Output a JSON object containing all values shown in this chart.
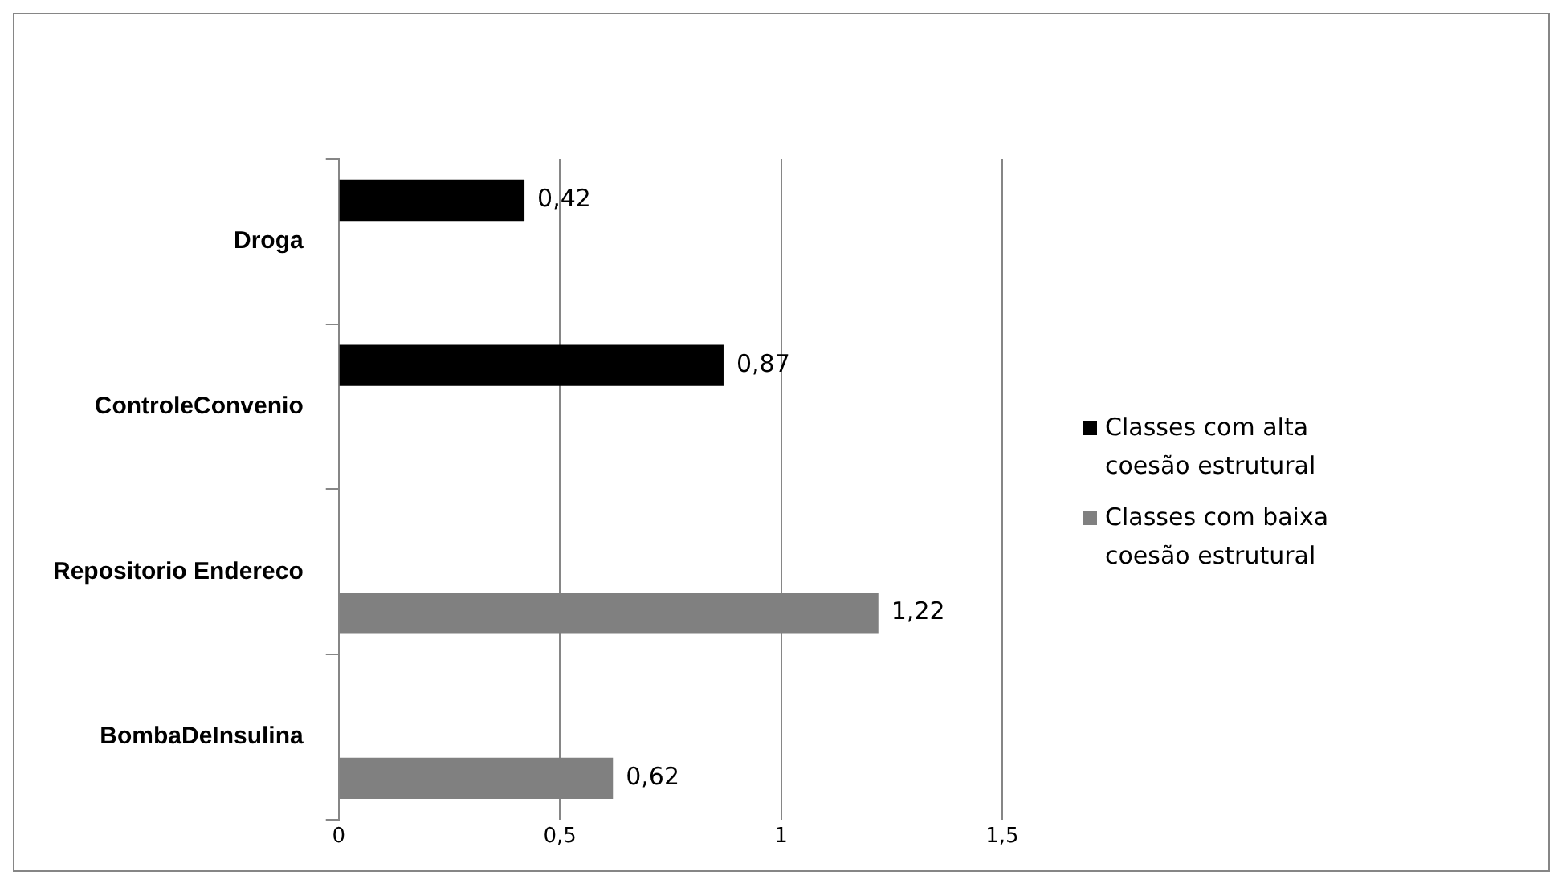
{
  "chart_data": {
    "type": "bar",
    "orientation": "horizontal",
    "categories": [
      "Droga",
      "ControleConvenio",
      "Repositorio Endereco",
      "BombaDeInsulina"
    ],
    "series": [
      {
        "name": "Classes com alta coesão estrutural",
        "color": "#000000",
        "values": [
          0.42,
          0.87,
          null,
          null
        ],
        "value_labels": [
          "0,42",
          "0,87",
          null,
          null
        ]
      },
      {
        "name": "Classes com baixa coesão estrutural",
        "color": "#808080",
        "values": [
          null,
          null,
          1.22,
          0.62
        ],
        "value_labels": [
          null,
          null,
          "1,22",
          "0,62"
        ]
      }
    ],
    "xlim": [
      0,
      1.5
    ],
    "xticks": [
      0,
      {
        "value": 0.5,
        "label": "0,5"
      },
      1,
      {
        "value": 1.5,
        "label": "1,5"
      }
    ],
    "grid": "x",
    "legend": "right"
  }
}
